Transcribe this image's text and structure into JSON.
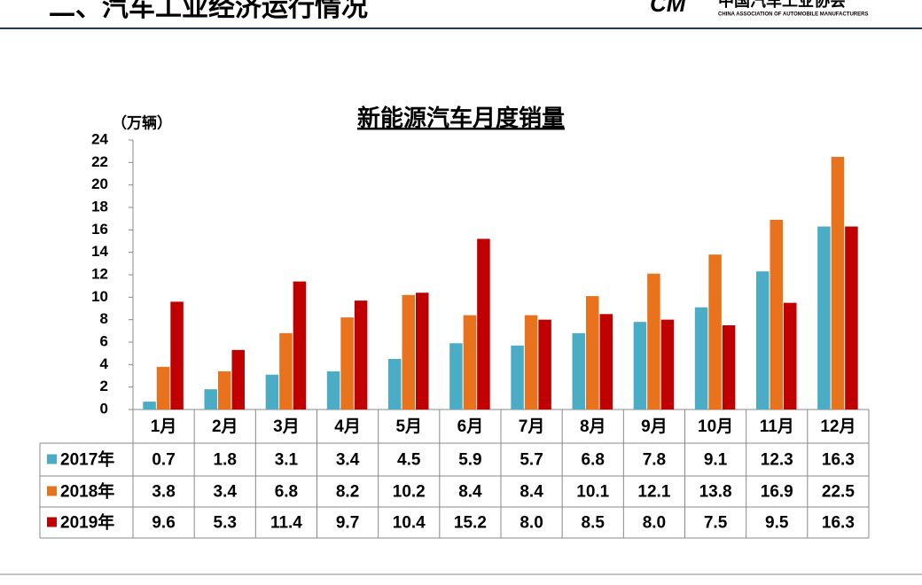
{
  "header": {
    "title": "二、汽车工业经济运行情况",
    "logo_text": "中国汽车工业协会",
    "logo_subtext": "CHINA ASSOCIATION OF AUTOMOBILE MANUFACTURERS"
  },
  "chart_data": {
    "type": "bar",
    "title": "新能源汽车月度销量",
    "y_label": "（万辆）",
    "categories": [
      "1月",
      "2月",
      "3月",
      "4月",
      "5月",
      "6月",
      "7月",
      "8月",
      "9月",
      "10月",
      "11月",
      "12月"
    ],
    "series": [
      {
        "name": "2017年",
        "color": "#4bacc6",
        "values": [
          0.7,
          1.8,
          3.1,
          3.4,
          4.5,
          5.9,
          5.7,
          6.8,
          7.8,
          9.1,
          12.3,
          16.3
        ],
        "value_labels": [
          "0.7",
          "1.8",
          "3.1",
          "3.4",
          "4.5",
          "5.9",
          "5.7",
          "6.8",
          "7.8",
          "9.1",
          "12.3",
          "16.3"
        ]
      },
      {
        "name": "2018年",
        "color": "#e8731c",
        "values": [
          3.8,
          3.4,
          6.8,
          8.2,
          10.2,
          8.4,
          8.4,
          10.1,
          12.1,
          13.8,
          16.9,
          22.5
        ],
        "value_labels": [
          "3.8",
          "3.4",
          "6.8",
          "8.2",
          "10.2",
          "8.4",
          "8.4",
          "10.1",
          "12.1",
          "13.8",
          "16.9",
          "22.5"
        ]
      },
      {
        "name": "2019年",
        "color": "#c00000",
        "values": [
          9.6,
          5.3,
          11.4,
          9.7,
          10.4,
          15.2,
          8,
          8.5,
          8,
          7.5,
          9.5,
          16.3
        ],
        "value_labels": [
          "9.6",
          "5.3",
          "11.4",
          "9.7",
          "10.4",
          "15.2",
          "8.0",
          "8.5",
          "8.0",
          "7.5",
          "9.5",
          "16.3"
        ]
      }
    ],
    "ylim": [
      0,
      24
    ],
    "yticks": [
      0,
      2,
      4,
      6,
      8,
      10,
      12,
      14,
      16,
      18,
      20,
      22,
      24
    ],
    "grid": false
  }
}
